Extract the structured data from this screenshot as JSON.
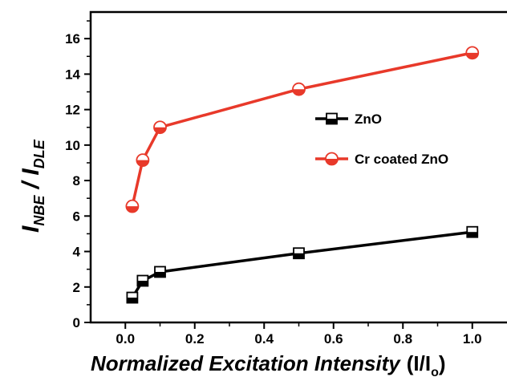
{
  "chart_data": {
    "type": "line",
    "title": "",
    "xlabel": "Normalized Excitation Intensity",
    "xlabel_suffix_main": "(I/I",
    "xlabel_suffix_sub": "o",
    "xlabel_suffix_end": ")",
    "ylabel_main_1": "I",
    "ylabel_sub_1": "NBE",
    "ylabel_sep": " / ",
    "ylabel_main_2": "I",
    "ylabel_sub_2": "DLE",
    "xlim": [
      -0.1,
      1.1
    ],
    "ylim": [
      0,
      17.5
    ],
    "x_ticks": [
      "0.0",
      "0.2",
      "0.4",
      "0.6",
      "0.8",
      "1.0"
    ],
    "x_tick_values": [
      0,
      0.2,
      0.4,
      0.6,
      0.8,
      1.0
    ],
    "y_ticks": [
      "0",
      "2",
      "4",
      "6",
      "8",
      "10",
      "12",
      "14",
      "16"
    ],
    "y_tick_values": [
      0,
      2,
      4,
      6,
      8,
      10,
      12,
      14,
      16
    ],
    "grid": false,
    "legend_position": "right-middle",
    "series": [
      {
        "name": "ZnO",
        "color": "#000000",
        "marker": "half-filled-square",
        "x": [
          0.02,
          0.05,
          0.1,
          0.5,
          1.0
        ],
        "y": [
          1.4,
          2.35,
          2.85,
          3.9,
          5.1
        ]
      },
      {
        "name": "Cr coated ZnO",
        "color": "#e8392a",
        "marker": "half-filled-circle",
        "x": [
          0.02,
          0.05,
          0.1,
          0.5,
          1.0
        ],
        "y": [
          6.55,
          9.15,
          11.0,
          13.15,
          15.2
        ]
      }
    ]
  }
}
